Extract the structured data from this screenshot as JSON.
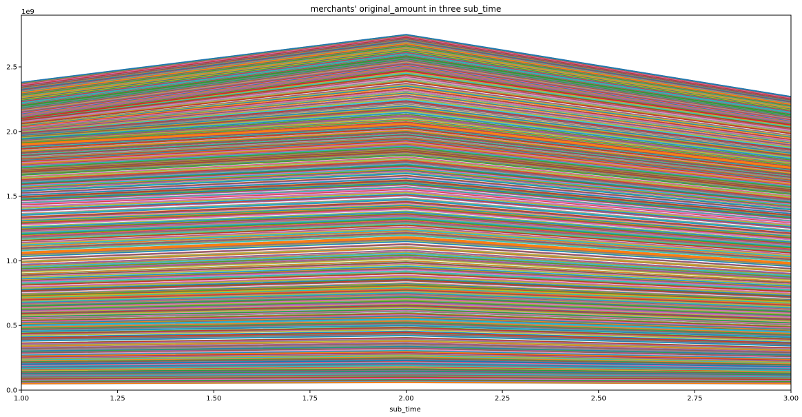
{
  "chart_data": {
    "type": "line",
    "title": "merchants' original_amount in three sub_time",
    "xlabel": "sub_time",
    "ylabel": "",
    "y_offset_label": "1e9",
    "x": [
      1,
      2,
      3
    ],
    "xlim": [
      1.0,
      3.0
    ],
    "ylim": [
      0,
      2.9
    ],
    "y_scale_factor": 1000000000,
    "x_ticks": [
      "1.00",
      "1.25",
      "1.50",
      "1.75",
      "2.00",
      "2.25",
      "2.50",
      "2.75",
      "3.00"
    ],
    "y_ticks": [
      "0.0",
      "0.5",
      "1.0",
      "1.5",
      "2.0",
      "2.5"
    ],
    "grid": false,
    "legend": "none",
    "palette": [
      "#1f77b4",
      "#ff7f0e",
      "#2ca02c",
      "#d62728",
      "#9467bd",
      "#8c564b",
      "#e377c2",
      "#7f7f7f",
      "#bcbd22",
      "#17becf"
    ],
    "series_pattern": "cumulative stacked merchant lines; each series rises from sub_time 1 to a peak at sub_time 2 and falls at sub_time 3",
    "series": [
      {
        "values": [
          2.38,
          2.75,
          2.27
        ]
      },
      {
        "values": [
          2.3,
          2.68,
          2.21
        ]
      },
      {
        "values": [
          2.2,
          2.58,
          2.13
        ]
      },
      {
        "values": [
          2.1,
          2.47,
          2.05
        ]
      },
      {
        "values": [
          1.9,
          2.06,
          1.72
        ]
      },
      {
        "values": [
          1.7,
          1.86,
          1.55
        ]
      },
      {
        "values": [
          1.44,
          1.56,
          1.3
        ]
      },
      {
        "values": [
          1.06,
          1.18,
          0.98
        ]
      },
      {
        "values": [
          0.72,
          0.8,
          0.68
        ]
      },
      {
        "values": [
          0.5,
          0.55,
          0.45
        ]
      },
      {
        "values": [
          0.2,
          0.23,
          0.18
        ]
      },
      {
        "values": [
          0.05,
          0.06,
          0.05
        ]
      }
    ]
  }
}
